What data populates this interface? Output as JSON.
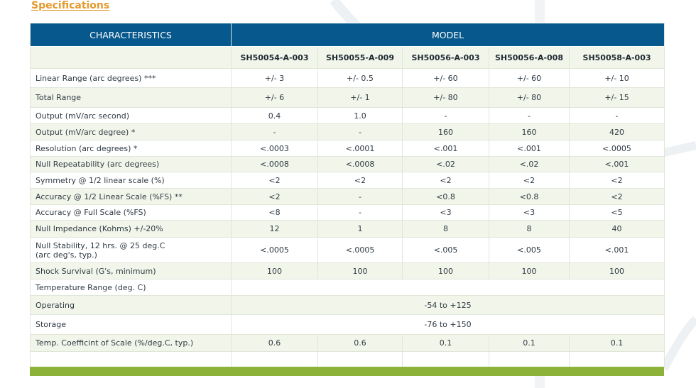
{
  "heading": "Specifications",
  "table": {
    "header_left": "CHARACTERISTICS",
    "header_right": "MODEL",
    "models": [
      "SH50054-A-003",
      "SH50055-A-009",
      "SH50056-A-003",
      "SH50056-A-008",
      "SH50058-A-003"
    ],
    "rows": [
      {
        "label": "Linear Range (arc degrees) ***",
        "values": [
          "+/- 3",
          "+/- 0.5",
          "+/- 60",
          "+/- 60",
          "+/- 10"
        ]
      },
      {
        "label": "Total Range",
        "values": [
          "+/- 6",
          "+/- 1",
          "+/- 80",
          "+/- 80",
          "+/- 15"
        ]
      },
      {
        "label": "Output (mV/arc second)",
        "values": [
          "0.4",
          "1.0",
          "-",
          "-",
          "-"
        ]
      },
      {
        "label": "Output (mV/arc degree) *",
        "values": [
          "-",
          "-",
          "160",
          "160",
          "420"
        ]
      },
      {
        "label": "Resolution (arc degrees) *",
        "values": [
          "<.0003",
          "<.0001",
          "<.001",
          "<.001",
          "<.0005"
        ]
      },
      {
        "label": "Null Repeatability (arc degrees)",
        "values": [
          "<.0008",
          "<.0008",
          "<.02",
          "<.02",
          "<.001"
        ]
      },
      {
        "label": "Symmetry @ 1/2 linear scale (%)",
        "values": [
          "<2",
          "<2",
          "<2",
          "<2",
          "<2"
        ]
      },
      {
        "label": "Accuracy @ 1/2 Linear Scale (%FS) **",
        "values": [
          "<2",
          "-",
          "<0.8",
          "<0.8",
          "<2"
        ]
      },
      {
        "label": "Accuracy @ Full Scale (%FS)",
        "values": [
          "<8",
          "-",
          "<3",
          "<3",
          "<5"
        ]
      },
      {
        "label": "Null Impedance (Kohms)  +/-20%",
        "values": [
          "12",
          "1",
          "8",
          "8",
          "40"
        ]
      },
      {
        "label": "Null Stability, 12 hrs. @ 25 deg.C",
        "label2": "(arc deg's, typ.)",
        "values": [
          "<.0005",
          "<.0005",
          "<.005",
          "<.005",
          "<.001"
        ]
      },
      {
        "label": "Shock Survival (G's, minimum)",
        "values": [
          "100",
          "100",
          "100",
          "100",
          "100"
        ]
      }
    ],
    "temperature_label": "Temperature Range (deg. C)",
    "operating_label": "Operating",
    "operating_value": "-54 to +125",
    "storage_label": "Storage",
    "storage_value": "-76 to +150",
    "temp_coeff": {
      "label": "Temp. Coefficint of Scale (%/deg.C, typ.)",
      "values": [
        "0.6",
        "0.6",
        "0.1",
        "0.1",
        "0.1"
      ]
    }
  },
  "colors": {
    "header_bg": "#07588c",
    "heading": "#e39a2e",
    "footer_bar": "#8db23a",
    "row_tint": "#f2f6ea"
  }
}
